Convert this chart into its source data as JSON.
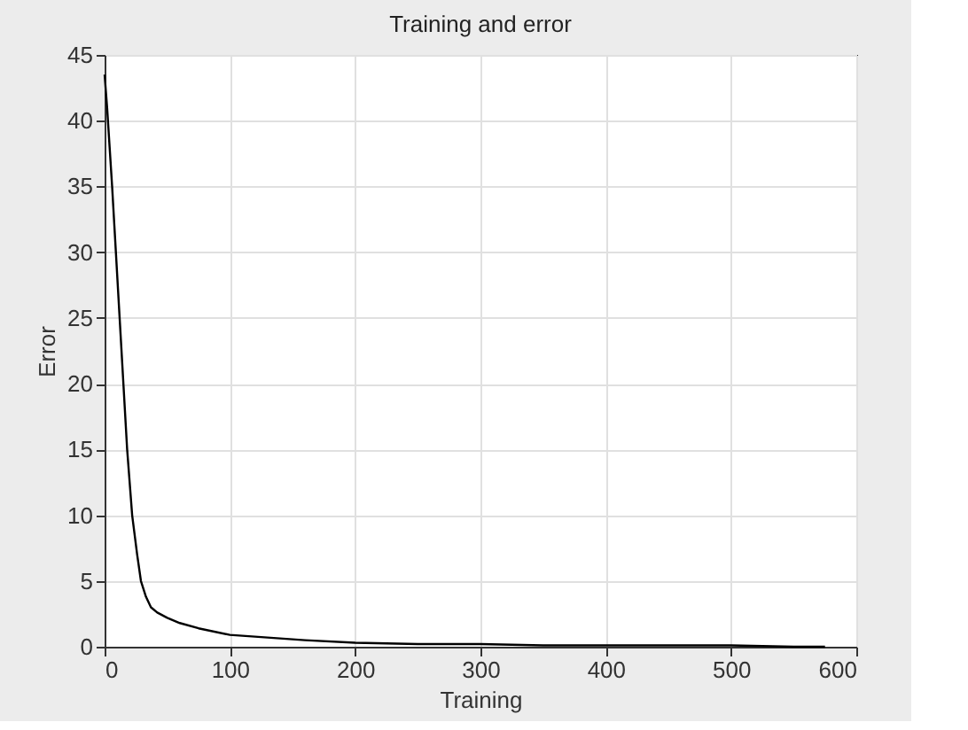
{
  "chart_data": {
    "type": "line",
    "title": "Training and error",
    "xlabel": "Training",
    "ylabel": "Error",
    "series": [
      {
        "color": "#000000",
        "x": [
          0,
          2,
          4,
          6,
          9,
          12,
          15,
          18,
          22,
          26,
          29,
          33,
          37,
          42,
          50,
          60,
          75,
          100,
          130,
          160,
          200,
          250,
          300,
          350,
          400,
          450,
          500,
          550,
          575
        ],
        "values": [
          43.5,
          41,
          38,
          35,
          30,
          25,
          20,
          15,
          10,
          7,
          5,
          3.8,
          3,
          2.6,
          2.2,
          1.8,
          1.4,
          0.9,
          0.7,
          0.5,
          0.3,
          0.2,
          0.2,
          0.1,
          0.1,
          0.1,
          0.1,
          0,
          0
        ]
      }
    ],
    "xlim": [
      0,
      600
    ],
    "xticks": [
      0,
      100,
      200,
      300,
      400,
      500,
      600
    ],
    "ylim": [
      0,
      45
    ],
    "yticks": [
      0,
      5,
      10,
      15,
      20,
      25,
      30,
      35,
      40,
      45
    ],
    "grid": true,
    "marker": "none",
    "line_style": "solid"
  }
}
